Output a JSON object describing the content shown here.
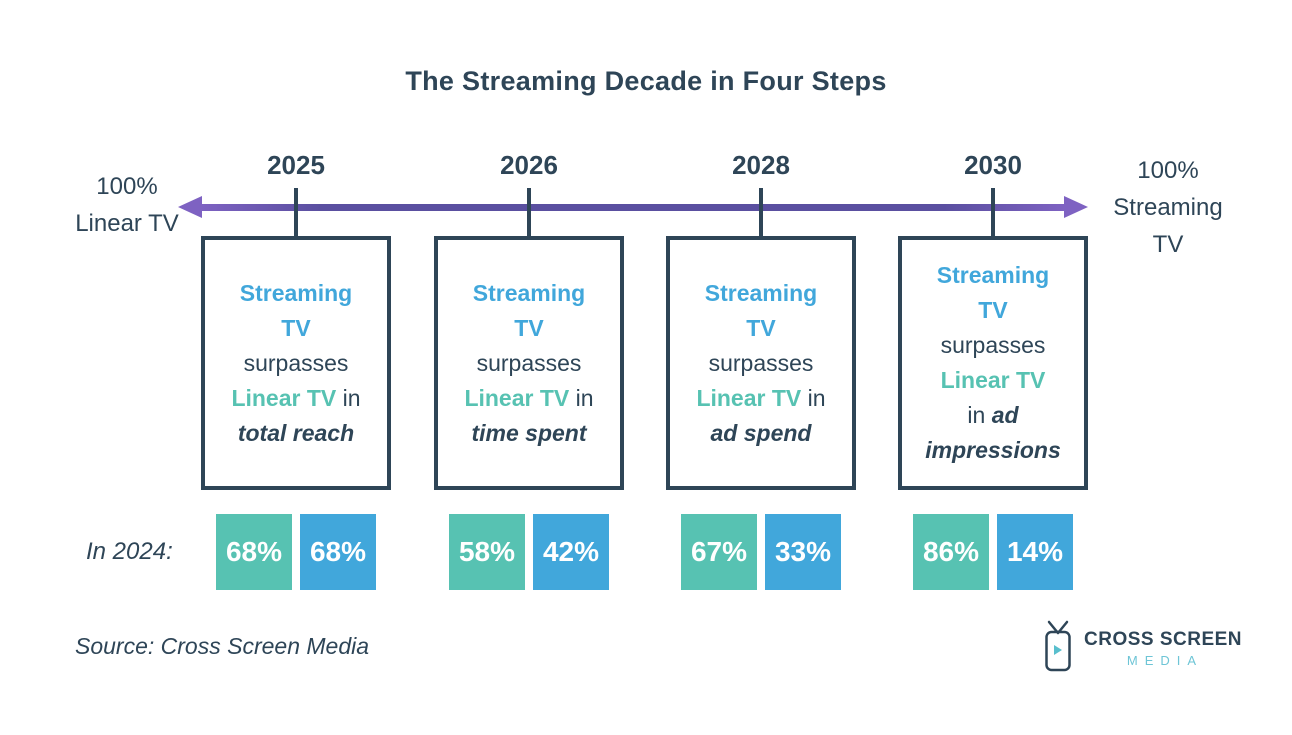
{
  "title": "The Streaming Decade in Four Steps",
  "timeline": {
    "left_endpoint": {
      "lines": [
        "100%",
        "Linear TV"
      ]
    },
    "right_endpoint": {
      "lines": [
        "100%",
        "Streaming",
        "TV"
      ]
    },
    "arrow_icon": "double-headed-arrow-icon"
  },
  "row_label": "In 2024:",
  "columns": [
    {
      "year": "2025",
      "milestone": "Streaming TV surpasses Linear TV in total reach",
      "box_lines": [
        [
          {
            "t": "Streaming",
            "s": "streaming"
          }
        ],
        [
          {
            "t": "TV",
            "s": "streaming"
          }
        ],
        [
          {
            "t": "surpasses",
            "s": "plain"
          }
        ],
        [
          {
            "t": "Linear TV",
            "s": "linear"
          },
          {
            "t": " in",
            "s": "plain"
          }
        ],
        [
          {
            "t": "total reach",
            "s": "emphasis"
          }
        ]
      ],
      "in_2024": {
        "linear": "68%",
        "streaming": "68%"
      }
    },
    {
      "year": "2026",
      "milestone": "Streaming TV surpasses Linear TV in time spent",
      "box_lines": [
        [
          {
            "t": "Streaming",
            "s": "streaming"
          }
        ],
        [
          {
            "t": "TV",
            "s": "streaming"
          }
        ],
        [
          {
            "t": "surpasses",
            "s": "plain"
          }
        ],
        [
          {
            "t": "Linear TV",
            "s": "linear"
          },
          {
            "t": " in",
            "s": "plain"
          }
        ],
        [
          {
            "t": "time spent",
            "s": "emphasis"
          }
        ]
      ],
      "in_2024": {
        "linear": "58%",
        "streaming": "42%"
      }
    },
    {
      "year": "2028",
      "milestone": "Streaming TV surpasses Linear TV in ad spend",
      "box_lines": [
        [
          {
            "t": "Streaming",
            "s": "streaming"
          }
        ],
        [
          {
            "t": "TV",
            "s": "streaming"
          }
        ],
        [
          {
            "t": "surpasses",
            "s": "plain"
          }
        ],
        [
          {
            "t": "Linear TV",
            "s": "linear"
          },
          {
            "t": " in",
            "s": "plain"
          }
        ],
        [
          {
            "t": "ad spend",
            "s": "emphasis"
          }
        ]
      ],
      "in_2024": {
        "linear": "67%",
        "streaming": "33%"
      }
    },
    {
      "year": "2030",
      "milestone": "Streaming TV surpasses Linear TV in ad impressions",
      "box_lines": [
        [
          {
            "t": "Streaming",
            "s": "streaming"
          }
        ],
        [
          {
            "t": "TV",
            "s": "streaming"
          }
        ],
        [
          {
            "t": "surpasses",
            "s": "plain"
          }
        ],
        [
          {
            "t": "Linear TV",
            "s": "linear"
          }
        ],
        [
          {
            "t": "in ",
            "s": "plain"
          },
          {
            "t": "ad",
            "s": "emphasis"
          }
        ],
        [
          {
            "t": "impressions",
            "s": "emphasis"
          }
        ]
      ],
      "in_2024": {
        "linear": "86%",
        "streaming": "14%"
      }
    }
  ],
  "source": "Source: Cross Screen Media",
  "logo": {
    "name": "CROSS SCREEN",
    "sub": "MEDIA",
    "icon": "tv-play-icon"
  },
  "colors": {
    "navy": "#2e4557",
    "streaming_blue": "#41a7db",
    "linear_teal": "#57c2b2",
    "arrow_purple": "#5a4fa0",
    "arrow_purple_light": "#7e62c2",
    "logo_media_blue": "#6ec5d6"
  },
  "chart_data": {
    "type": "table",
    "title": "The Streaming Decade in Four Steps",
    "categories": [
      "2025",
      "2026",
      "2028",
      "2030"
    ],
    "milestones": [
      "Streaming TV surpasses Linear TV in total reach",
      "Streaming TV surpasses Linear TV in time spent",
      "Streaming TV surpasses Linear TV in ad spend",
      "Streaming TV surpasses Linear TV in ad impressions"
    ],
    "series": [
      {
        "name": "Linear TV share in 2024",
        "values": [
          "68%",
          "58%",
          "67%",
          "86%"
        ]
      },
      {
        "name": "Streaming TV share in 2024",
        "values": [
          "68%",
          "42%",
          "33%",
          "14%"
        ]
      }
    ],
    "axis_endpoints": [
      "100% Linear TV",
      "100% Streaming TV"
    ]
  }
}
